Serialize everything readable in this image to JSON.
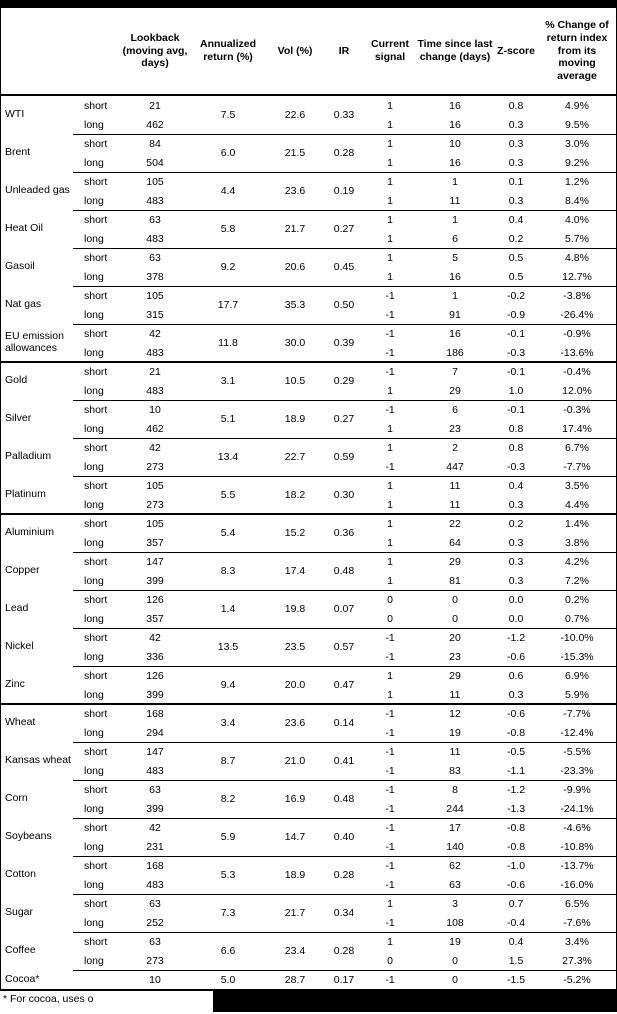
{
  "table": {
    "col_headers": {
      "lookback": "Lookback (moving avg, days)",
      "annualized_return": "Annualized return (%)",
      "vol": "Vol (%)",
      "ir": "IR",
      "current_signal": "Current signal",
      "time_since": "Time since last change (days)",
      "zscore": "Z-score",
      "pct_change": "% Change of return index from its moving average"
    },
    "sections": [
      {
        "commodities": [
          {
            "name": "WTI",
            "annualized_return": "7.5",
            "vol": "22.6",
            "ir": "0.33",
            "legs": [
              {
                "pos": "short",
                "lookback": "21",
                "signal": "1",
                "days": "16",
                "zscore": "0.8",
                "pct_change": "4.9%"
              },
              {
                "pos": "long",
                "lookback": "462",
                "signal": "1",
                "days": "16",
                "zscore": "0.3",
                "pct_change": "9.5%"
              }
            ]
          },
          {
            "name": "Brent",
            "annualized_return": "6.0",
            "vol": "21.5",
            "ir": "0.28",
            "legs": [
              {
                "pos": "short",
                "lookback": "84",
                "signal": "1",
                "days": "10",
                "zscore": "0.3",
                "pct_change": "3.0%"
              },
              {
                "pos": "long",
                "lookback": "504",
                "signal": "1",
                "days": "16",
                "zscore": "0.3",
                "pct_change": "9.2%"
              }
            ]
          },
          {
            "name": "Unleaded gas",
            "annualized_return": "4.4",
            "vol": "23.6",
            "ir": "0.19",
            "legs": [
              {
                "pos": "short",
                "lookback": "105",
                "signal": "1",
                "days": "1",
                "zscore": "0.1",
                "pct_change": "1.2%"
              },
              {
                "pos": "long",
                "lookback": "483",
                "signal": "1",
                "days": "11",
                "zscore": "0.3",
                "pct_change": "8.4%"
              }
            ]
          },
          {
            "name": "Heat Oil",
            "annualized_return": "5.8",
            "vol": "21.7",
            "ir": "0.27",
            "legs": [
              {
                "pos": "short",
                "lookback": "63",
                "signal": "1",
                "days": "1",
                "zscore": "0.4",
                "pct_change": "4.0%"
              },
              {
                "pos": "long",
                "lookback": "483",
                "signal": "1",
                "days": "6",
                "zscore": "0.2",
                "pct_change": "5.7%"
              }
            ]
          },
          {
            "name": "Gasoil",
            "annualized_return": "9.2",
            "vol": "20.6",
            "ir": "0.45",
            "legs": [
              {
                "pos": "short",
                "lookback": "63",
                "signal": "1",
                "days": "5",
                "zscore": "0.5",
                "pct_change": "4.8%"
              },
              {
                "pos": "long",
                "lookback": "378",
                "signal": "1",
                "days": "16",
                "zscore": "0.5",
                "pct_change": "12.7%"
              }
            ]
          },
          {
            "name": "Nat gas",
            "annualized_return": "17.7",
            "vol": "35.3",
            "ir": "0.50",
            "legs": [
              {
                "pos": "short",
                "lookback": "105",
                "signal": "-1",
                "days": "1",
                "zscore": "-0.2",
                "pct_change": "-3.8%"
              },
              {
                "pos": "long",
                "lookback": "315",
                "signal": "-1",
                "days": "91",
                "zscore": "-0.9",
                "pct_change": "-26.4%"
              }
            ]
          },
          {
            "name": "EU emission allowances",
            "annualized_return": "11.8",
            "vol": "30.0",
            "ir": "0.39",
            "legs": [
              {
                "pos": "short",
                "lookback": "42",
                "signal": "-1",
                "days": "16",
                "zscore": "-0.1",
                "pct_change": "-0.9%"
              },
              {
                "pos": "long",
                "lookback": "483",
                "signal": "-1",
                "days": "186",
                "zscore": "-0.3",
                "pct_change": "-13.6%"
              }
            ]
          }
        ]
      },
      {
        "commodities": [
          {
            "name": "Gold",
            "annualized_return": "3.1",
            "vol": "10.5",
            "ir": "0.29",
            "legs": [
              {
                "pos": "short",
                "lookback": "21",
                "signal": "-1",
                "days": "7",
                "zscore": "-0.1",
                "pct_change": "-0.4%"
              },
              {
                "pos": "long",
                "lookback": "483",
                "signal": "1",
                "days": "29",
                "zscore": "1.0",
                "pct_change": "12.0%"
              }
            ]
          },
          {
            "name": "Silver",
            "annualized_return": "5.1",
            "vol": "18.9",
            "ir": "0.27",
            "legs": [
              {
                "pos": "short",
                "lookback": "10",
                "signal": "-1",
                "days": "6",
                "zscore": "-0.1",
                "pct_change": "-0.3%"
              },
              {
                "pos": "long",
                "lookback": "462",
                "signal": "1",
                "days": "23",
                "zscore": "0.8",
                "pct_change": "17.4%"
              }
            ]
          },
          {
            "name": "Palladium",
            "annualized_return": "13.4",
            "vol": "22.7",
            "ir": "0.59",
            "legs": [
              {
                "pos": "short",
                "lookback": "42",
                "signal": "1",
                "days": "2",
                "zscore": "0.8",
                "pct_change": "6.7%"
              },
              {
                "pos": "long",
                "lookback": "273",
                "signal": "-1",
                "days": "447",
                "zscore": "-0.3",
                "pct_change": "-7.7%"
              }
            ]
          },
          {
            "name": "Platinum",
            "annualized_return": "5.5",
            "vol": "18.2",
            "ir": "0.30",
            "legs": [
              {
                "pos": "short",
                "lookback": "105",
                "signal": "1",
                "days": "11",
                "zscore": "0.4",
                "pct_change": "3.5%"
              },
              {
                "pos": "long",
                "lookback": "273",
                "signal": "1",
                "days": "11",
                "zscore": "0.3",
                "pct_change": "4.4%"
              }
            ]
          }
        ]
      },
      {
        "commodities": [
          {
            "name": "Aluminium",
            "annualized_return": "5.4",
            "vol": "15.2",
            "ir": "0.36",
            "legs": [
              {
                "pos": "short",
                "lookback": "105",
                "signal": "1",
                "days": "22",
                "zscore": "0.2",
                "pct_change": "1.4%"
              },
              {
                "pos": "long",
                "lookback": "357",
                "signal": "1",
                "days": "64",
                "zscore": "0.3",
                "pct_change": "3.8%"
              }
            ]
          },
          {
            "name": "Copper",
            "annualized_return": "8.3",
            "vol": "17.4",
            "ir": "0.48",
            "legs": [
              {
                "pos": "short",
                "lookback": "147",
                "signal": "1",
                "days": "29",
                "zscore": "0.3",
                "pct_change": "4.2%"
              },
              {
                "pos": "long",
                "lookback": "399",
                "signal": "1",
                "days": "81",
                "zscore": "0.3",
                "pct_change": "7.2%"
              }
            ]
          },
          {
            "name": "Lead",
            "annualized_return": "1.4",
            "vol": "19.8",
            "ir": "0.07",
            "legs": [
              {
                "pos": "short",
                "lookback": "126",
                "signal": "0",
                "days": "0",
                "zscore": "0.0",
                "pct_change": "0.2%"
              },
              {
                "pos": "long",
                "lookback": "357",
                "signal": "0",
                "days": "0",
                "zscore": "0.0",
                "pct_change": "0.7%"
              }
            ]
          },
          {
            "name": "Nickel",
            "annualized_return": "13.5",
            "vol": "23.5",
            "ir": "0.57",
            "legs": [
              {
                "pos": "short",
                "lookback": "42",
                "signal": "-1",
                "days": "20",
                "zscore": "-1.2",
                "pct_change": "-10.0%"
              },
              {
                "pos": "long",
                "lookback": "336",
                "signal": "-1",
                "days": "23",
                "zscore": "-0.6",
                "pct_change": "-15.3%"
              }
            ]
          },
          {
            "name": "Zinc",
            "annualized_return": "9.4",
            "vol": "20.0",
            "ir": "0.47",
            "legs": [
              {
                "pos": "short",
                "lookback": "126",
                "signal": "1",
                "days": "29",
                "zscore": "0.6",
                "pct_change": "6.9%"
              },
              {
                "pos": "long",
                "lookback": "399",
                "signal": "1",
                "days": "11",
                "zscore": "0.3",
                "pct_change": "5.9%"
              }
            ]
          }
        ]
      },
      {
        "commodities": [
          {
            "name": "Wheat",
            "annualized_return": "3.4",
            "vol": "23.6",
            "ir": "0.14",
            "legs": [
              {
                "pos": "short",
                "lookback": "168",
                "signal": "-1",
                "days": "12",
                "zscore": "-0.6",
                "pct_change": "-7.7%"
              },
              {
                "pos": "long",
                "lookback": "294",
                "signal": "-1",
                "days": "19",
                "zscore": "-0.8",
                "pct_change": "-12.4%"
              }
            ]
          },
          {
            "name": "Kansas wheat",
            "annualized_return": "8.7",
            "vol": "21.0",
            "ir": "0.41",
            "legs": [
              {
                "pos": "short",
                "lookback": "147",
                "signal": "-1",
                "days": "11",
                "zscore": "-0.5",
                "pct_change": "-5.5%"
              },
              {
                "pos": "long",
                "lookback": "483",
                "signal": "-1",
                "days": "83",
                "zscore": "-1.1",
                "pct_change": "-23.3%"
              }
            ]
          },
          {
            "name": "Corn",
            "annualized_return": "8.2",
            "vol": "16.9",
            "ir": "0.48",
            "legs": [
              {
                "pos": "short",
                "lookback": "63",
                "signal": "-1",
                "days": "8",
                "zscore": "-1.2",
                "pct_change": "-9.9%"
              },
              {
                "pos": "long",
                "lookback": "399",
                "signal": "-1",
                "days": "244",
                "zscore": "-1.3",
                "pct_change": "-24.1%"
              }
            ]
          },
          {
            "name": "Soybeans",
            "annualized_return": "5.9",
            "vol": "14.7",
            "ir": "0.40",
            "legs": [
              {
                "pos": "short",
                "lookback": "42",
                "signal": "-1",
                "days": "17",
                "zscore": "-0.8",
                "pct_change": "-4.6%"
              },
              {
                "pos": "long",
                "lookback": "231",
                "signal": "-1",
                "days": "140",
                "zscore": "-0.8",
                "pct_change": "-10.8%"
              }
            ]
          },
          {
            "name": "Cotton",
            "annualized_return": "5.3",
            "vol": "18.9",
            "ir": "0.28",
            "legs": [
              {
                "pos": "short",
                "lookback": "168",
                "signal": "-1",
                "days": "62",
                "zscore": "-1.0",
                "pct_change": "-13.7%"
              },
              {
                "pos": "long",
                "lookback": "483",
                "signal": "-1",
                "days": "63",
                "zscore": "-0.6",
                "pct_change": "-16.0%"
              }
            ]
          },
          {
            "name": "Sugar",
            "annualized_return": "7.3",
            "vol": "21.7",
            "ir": "0.34",
            "legs": [
              {
                "pos": "short",
                "lookback": "63",
                "signal": "1",
                "days": "3",
                "zscore": "0.7",
                "pct_change": "6.5%"
              },
              {
                "pos": "long",
                "lookback": "252",
                "signal": "-1",
                "days": "108",
                "zscore": "-0.4",
                "pct_change": "-7.6%"
              }
            ]
          },
          {
            "name": "Coffee",
            "annualized_return": "6.6",
            "vol": "23.4",
            "ir": "0.28",
            "legs": [
              {
                "pos": "short",
                "lookback": "63",
                "signal": "1",
                "days": "19",
                "zscore": "0.4",
                "pct_change": "3.4%"
              },
              {
                "pos": "long",
                "lookback": "273",
                "signal": "0",
                "days": "0",
                "zscore": "1.5",
                "pct_change": "27.3%"
              }
            ]
          },
          {
            "name": "Cocoa*",
            "annualized_return": "5.0",
            "vol": "28.7",
            "ir": "0.17",
            "legs": [
              {
                "pos": "",
                "lookback": "10",
                "signal": "-1",
                "days": "0",
                "zscore": "-1.5",
                "pct_change": "-5.2%"
              }
            ]
          }
        ]
      }
    ]
  },
  "footnote": "* For cocoa, uses o"
}
